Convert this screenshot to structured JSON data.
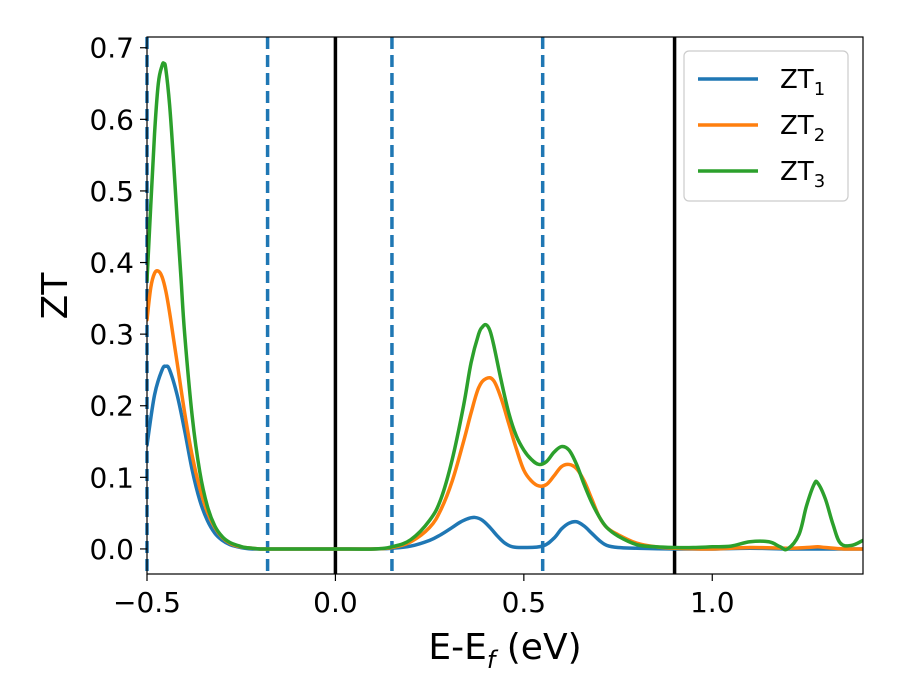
{
  "chart_data": {
    "type": "line",
    "xlabel": "E-E",
    "xlabel_sub": "f",
    "xlabel_unit": " (eV)",
    "ylabel": "ZT",
    "xlim": [
      -0.5,
      1.4
    ],
    "ylim": [
      -0.035,
      0.715
    ],
    "xticks": [
      -0.5,
      0.0,
      0.5,
      1.0
    ],
    "xtick_labels": [
      "−0.5",
      "0.0",
      "0.5",
      "1.0"
    ],
    "yticks": [
      0.0,
      0.1,
      0.2,
      0.3,
      0.4,
      0.5,
      0.6,
      0.7
    ],
    "ytick_labels": [
      "0.0",
      "0.1",
      "0.2",
      "0.3",
      "0.4",
      "0.5",
      "0.6",
      "0.7"
    ],
    "grid": false,
    "legend_position": "top-right",
    "vertical_lines": [
      {
        "x": -0.5,
        "style": "dashed",
        "color": "#1f77b4"
      },
      {
        "x": -0.18,
        "style": "dashed",
        "color": "#1f77b4"
      },
      {
        "x": 0.0,
        "style": "solid",
        "color": "#000000"
      },
      {
        "x": 0.15,
        "style": "dashed",
        "color": "#1f77b4"
      },
      {
        "x": 0.55,
        "style": "dashed",
        "color": "#1f77b4"
      },
      {
        "x": 0.9,
        "style": "solid",
        "color": "#000000"
      }
    ],
    "series": [
      {
        "name": "ZT",
        "subscript": "1",
        "color": "#1f77b4",
        "x": [
          -0.5,
          -0.48,
          -0.46,
          -0.45,
          -0.44,
          -0.42,
          -0.4,
          -0.38,
          -0.36,
          -0.34,
          -0.32,
          -0.3,
          -0.28,
          -0.26,
          -0.24,
          -0.22,
          -0.2,
          -0.15,
          -0.1,
          0.0,
          0.1,
          0.15,
          0.2,
          0.25,
          0.28,
          0.31,
          0.33,
          0.35,
          0.37,
          0.39,
          0.41,
          0.43,
          0.45,
          0.47,
          0.5,
          0.55,
          0.58,
          0.6,
          0.62,
          0.64,
          0.66,
          0.68,
          0.7,
          0.72,
          0.75,
          0.8,
          0.9,
          1.0,
          1.1,
          1.2,
          1.3,
          1.4
        ],
        "y": [
          0.145,
          0.215,
          0.25,
          0.255,
          0.25,
          0.215,
          0.165,
          0.11,
          0.068,
          0.04,
          0.022,
          0.012,
          0.006,
          0.003,
          0.001,
          0.0,
          0.0,
          0.0,
          0.0,
          0.0,
          0.0,
          0.001,
          0.004,
          0.012,
          0.02,
          0.03,
          0.037,
          0.042,
          0.044,
          0.04,
          0.03,
          0.018,
          0.008,
          0.003,
          0.002,
          0.004,
          0.015,
          0.028,
          0.036,
          0.038,
          0.032,
          0.022,
          0.012,
          0.005,
          0.002,
          0.001,
          0.0,
          0.0,
          0.001,
          0.0,
          0.0,
          0.0
        ]
      },
      {
        "name": "ZT",
        "subscript": "2",
        "color": "#ff7f0e",
        "x": [
          -0.5,
          -0.49,
          -0.48,
          -0.47,
          -0.46,
          -0.45,
          -0.44,
          -0.43,
          -0.42,
          -0.4,
          -0.38,
          -0.36,
          -0.34,
          -0.32,
          -0.3,
          -0.28,
          -0.26,
          -0.24,
          -0.22,
          -0.2,
          -0.15,
          -0.1,
          0.0,
          0.1,
          0.15,
          0.2,
          0.25,
          0.28,
          0.31,
          0.34,
          0.36,
          0.38,
          0.4,
          0.42,
          0.44,
          0.46,
          0.48,
          0.5,
          0.52,
          0.54,
          0.56,
          0.58,
          0.6,
          0.62,
          0.64,
          0.66,
          0.68,
          0.7,
          0.72,
          0.75,
          0.8,
          0.85,
          0.9,
          1.0,
          1.1,
          1.2,
          1.25,
          1.28,
          1.3,
          1.35,
          1.4
        ],
        "y": [
          0.32,
          0.365,
          0.385,
          0.388,
          0.38,
          0.36,
          0.33,
          0.295,
          0.26,
          0.19,
          0.13,
          0.085,
          0.052,
          0.03,
          0.016,
          0.008,
          0.004,
          0.002,
          0.001,
          0.0,
          0.0,
          0.0,
          0.0,
          0.0,
          0.002,
          0.01,
          0.03,
          0.055,
          0.095,
          0.15,
          0.19,
          0.225,
          0.238,
          0.235,
          0.21,
          0.175,
          0.14,
          0.11,
          0.095,
          0.088,
          0.09,
          0.102,
          0.115,
          0.118,
          0.112,
          0.095,
          0.07,
          0.045,
          0.03,
          0.02,
          0.008,
          0.003,
          0.001,
          0.0,
          0.002,
          0.001,
          0.002,
          0.003,
          0.002,
          0.0,
          0.0
        ]
      },
      {
        "name": "ZT",
        "subscript": "3",
        "color": "#2ca02c",
        "x": [
          -0.5,
          -0.49,
          -0.48,
          -0.47,
          -0.46,
          -0.455,
          -0.45,
          -0.44,
          -0.43,
          -0.42,
          -0.41,
          -0.4,
          -0.38,
          -0.36,
          -0.34,
          -0.32,
          -0.3,
          -0.28,
          -0.26,
          -0.24,
          -0.22,
          -0.2,
          -0.15,
          -0.1,
          0.0,
          0.1,
          0.15,
          0.2,
          0.25,
          0.28,
          0.31,
          0.34,
          0.36,
          0.38,
          0.39,
          0.4,
          0.41,
          0.42,
          0.44,
          0.46,
          0.48,
          0.5,
          0.52,
          0.54,
          0.56,
          0.58,
          0.6,
          0.62,
          0.64,
          0.66,
          0.68,
          0.7,
          0.72,
          0.75,
          0.8,
          0.85,
          0.9,
          0.95,
          1.0,
          1.05,
          1.1,
          1.15,
          1.18,
          1.2,
          1.23,
          1.25,
          1.27,
          1.28,
          1.3,
          1.32,
          1.34,
          1.37,
          1.4
        ],
        "y": [
          0.375,
          0.48,
          0.58,
          0.65,
          0.675,
          0.678,
          0.67,
          0.62,
          0.545,
          0.46,
          0.38,
          0.3,
          0.185,
          0.108,
          0.06,
          0.032,
          0.017,
          0.009,
          0.005,
          0.002,
          0.001,
          0.0,
          0.0,
          0.0,
          0.0,
          0.0,
          0.003,
          0.013,
          0.04,
          0.07,
          0.125,
          0.2,
          0.26,
          0.3,
          0.31,
          0.313,
          0.305,
          0.285,
          0.235,
          0.19,
          0.158,
          0.138,
          0.125,
          0.118,
          0.122,
          0.135,
          0.143,
          0.138,
          0.118,
          0.09,
          0.065,
          0.045,
          0.03,
          0.018,
          0.006,
          0.003,
          0.002,
          0.002,
          0.003,
          0.004,
          0.01,
          0.01,
          0.003,
          0.0,
          0.02,
          0.06,
          0.09,
          0.092,
          0.07,
          0.035,
          0.008,
          0.005,
          0.012
        ]
      }
    ]
  }
}
